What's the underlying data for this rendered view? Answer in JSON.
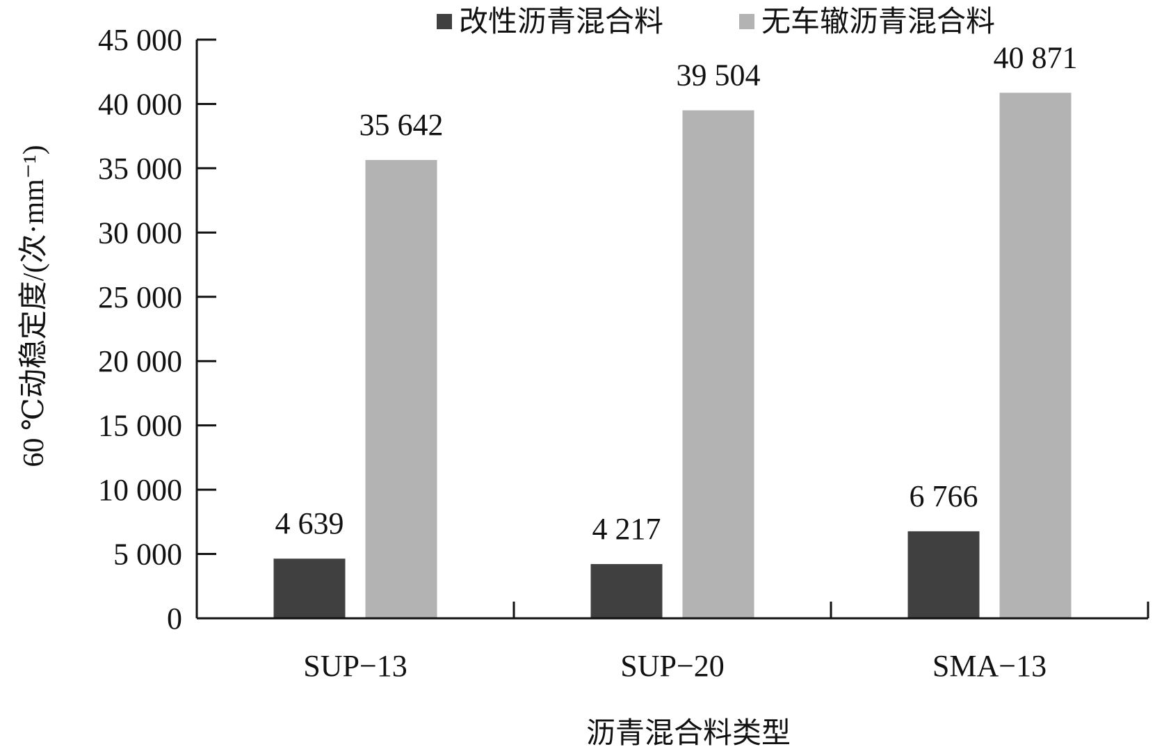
{
  "chart_data": {
    "type": "bar",
    "categories": [
      "SUP−13",
      "SUP−20",
      "SMA−13"
    ],
    "series": [
      {
        "name": "改性沥青混合料",
        "values": [
          4639,
          4217,
          6766
        ],
        "color": "#404040"
      },
      {
        "name": "无车辙沥青混合料",
        "values": [
          35642,
          39504,
          40871
        ],
        "color": "#b3b3b3"
      }
    ],
    "data_labels": [
      [
        "4 639",
        "4 217",
        "6 766"
      ],
      [
        "35 642",
        "39 504",
        "40 871"
      ]
    ],
    "xlabel": "沥青混合料类型",
    "ylabel": "60 ℃动稳定度/(次·mm⁻¹)",
    "ylim": [
      0,
      45000
    ],
    "yticks": [
      0,
      5000,
      10000,
      15000,
      20000,
      25000,
      30000,
      35000,
      40000,
      45000
    ],
    "ytick_labels": [
      "0",
      "5 000",
      "10 000",
      "15 000",
      "20 000",
      "25 000",
      "30 000",
      "35 000",
      "40 000",
      "45 000"
    ],
    "grid": false,
    "legend_position": "top"
  }
}
